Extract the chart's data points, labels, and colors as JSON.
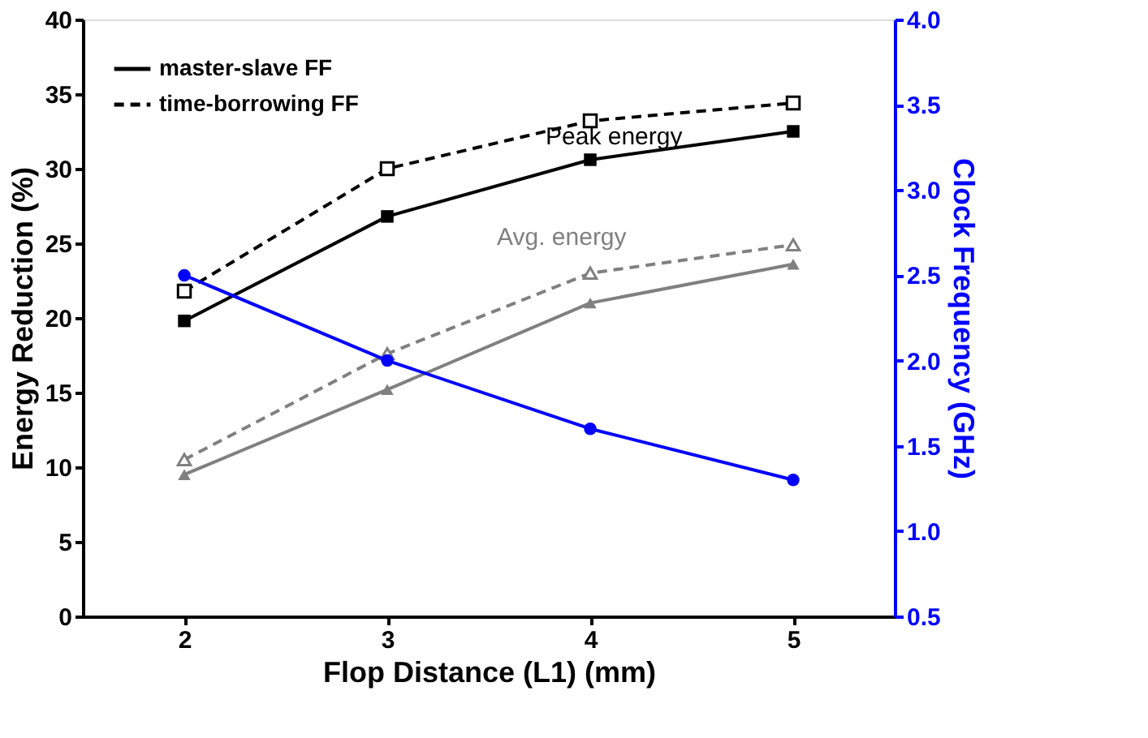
{
  "chart_data": {
    "type": "line",
    "xlabel": "Flop Distance (L1) (mm)",
    "ylabel": "Energy Reduction (%)",
    "y2label": "Clock Frequency (GHz)",
    "x": [
      2,
      3,
      4,
      5
    ],
    "xlim": [
      1.5,
      5.5
    ],
    "xticks": [
      2,
      3,
      4,
      5
    ],
    "ylim": [
      0,
      40
    ],
    "yticks": [
      0,
      5,
      10,
      15,
      20,
      25,
      30,
      35,
      40
    ],
    "y2lim": [
      0.5,
      4.0
    ],
    "y2ticks": [
      0.5,
      {
        "value": 1,
        "label": "1.0"
      },
      1.5,
      {
        "value": 2,
        "label": "2.0"
      },
      2.5,
      {
        "value": 3,
        "label": "3.0"
      },
      3.5,
      {
        "value": 4,
        "label": "4.0"
      }
    ],
    "grid": false,
    "legend": "top left",
    "series": [
      {
        "name": "master-slave FF",
        "color": "#000000",
        "values": [
          19.8,
          26.8,
          30.6,
          32.5
        ],
        "marker": "square",
        "line_style": "solid"
      },
      {
        "name": "time-borrowing FF",
        "color": "#000000",
        "values": [
          21.8,
          30.0,
          33.2,
          34.4
        ],
        "marker": "square",
        "line_style": "dashed"
      },
      {
        "color": "#808080",
        "values": [
          9.5,
          15.2,
          21.0,
          23.6
        ],
        "marker": "triangle",
        "line_style": "solid"
      },
      {
        "color": "#808080",
        "values": [
          10.5,
          17.6,
          23.0,
          24.9
        ],
        "marker": "triangle",
        "line_style": "dashed"
      },
      {
        "color": "#0000ff",
        "values": [
          2.5,
          2.0,
          1.6,
          1.3
        ],
        "marker": "circle",
        "line_style": "solid",
        "axis": "y2"
      }
    ],
    "annotations": [
      "Peak energy",
      "Avg. energy"
    ]
  }
}
